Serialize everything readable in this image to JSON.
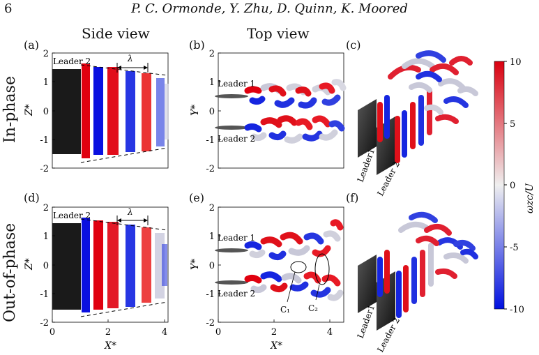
{
  "header": {
    "page_number": "6",
    "authors": "P. C. Ormonde, Y. Zhu, D. Quinn, K. Moored"
  },
  "columns": {
    "side_view": "Side view",
    "top_view": "Top view"
  },
  "rows": {
    "in_phase": "In-phase",
    "out_of_phase": "Out-of-phase"
  },
  "panels": {
    "a": "(a)",
    "b": "(b)",
    "c": "(c)",
    "d": "(d)",
    "e": "(e)",
    "f": "(f)"
  },
  "axes": {
    "side_y_label": "Z*",
    "top_y_label": "Y*",
    "x_label": "X*",
    "y_ticks": [
      "2",
      "1",
      "0",
      "-1",
      "-2"
    ],
    "x_ticks": [
      "0",
      "2",
      "4"
    ]
  },
  "annotations": {
    "leader1": "Leader 1",
    "leader2": "Leader 2",
    "leader1_3d": "Leader1",
    "leader2_3d": "Leader 2",
    "lambda": "λ",
    "c1": "C₁",
    "c2": "C₂"
  },
  "colorbar": {
    "label": "ωzc/U",
    "ticks": [
      "10",
      "5",
      "0",
      "-5",
      "-10"
    ],
    "range": [
      -10,
      10
    ],
    "colors": {
      "high": "#d9000f",
      "mid": "#efefef",
      "low": "#0010e0"
    }
  }
}
